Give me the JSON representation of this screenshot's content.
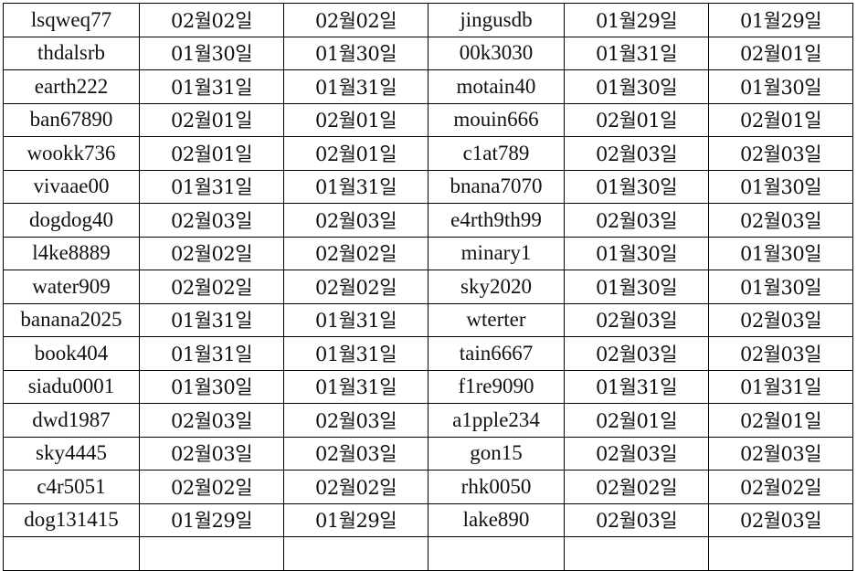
{
  "rows": [
    [
      "lsqweq77",
      "02월02일",
      "02월02일",
      "jingusdb",
      "01월29일",
      "01월29일"
    ],
    [
      "thdalsrb",
      "01월30일",
      "01월30일",
      "00k3030",
      "01월31일",
      "02월01일"
    ],
    [
      "earth222",
      "01월31일",
      "01월31일",
      "motain40",
      "01월30일",
      "01월30일"
    ],
    [
      "ban67890",
      "02월01일",
      "02월01일",
      "mouin666",
      "02월01일",
      "02월01일"
    ],
    [
      "wookk736",
      "02월01일",
      "02월01일",
      "c1at789",
      "02월03일",
      "02월03일"
    ],
    [
      "vivaae00",
      "01월31일",
      "01월31일",
      "bnana7070",
      "01월30일",
      "01월30일"
    ],
    [
      "dogdog40",
      "02월03일",
      "02월03일",
      "e4rth9th99",
      "02월03일",
      "02월03일"
    ],
    [
      "l4ke8889",
      "02월02일",
      "02월02일",
      "minary1",
      "01월30일",
      "01월30일"
    ],
    [
      "water909",
      "02월02일",
      "02월02일",
      "sky2020",
      "01월30일",
      "01월30일"
    ],
    [
      "banana2025",
      "01월31일",
      "01월31일",
      "wterter",
      "02월03일",
      "02월03일"
    ],
    [
      "book404",
      "01월31일",
      "01월31일",
      "tain6667",
      "02월03일",
      "02월03일"
    ],
    [
      "siadu0001",
      "01월30일",
      "01월31일",
      "f1re9090",
      "01월31일",
      "01월31일"
    ],
    [
      "dwd1987",
      "02월03일",
      "02월03일",
      "a1pple234",
      "02월01일",
      "02월01일"
    ],
    [
      "sky4445",
      "02월03일",
      "02월03일",
      "gon15",
      "02월03일",
      "02월03일"
    ],
    [
      "c4r5051",
      "02월02일",
      "02월02일",
      "rhk0050",
      "02월02일",
      "02월02일"
    ],
    [
      "dog131415",
      "01월29일",
      "01월29일",
      "lake890",
      "02월03일",
      "02월03일"
    ]
  ]
}
